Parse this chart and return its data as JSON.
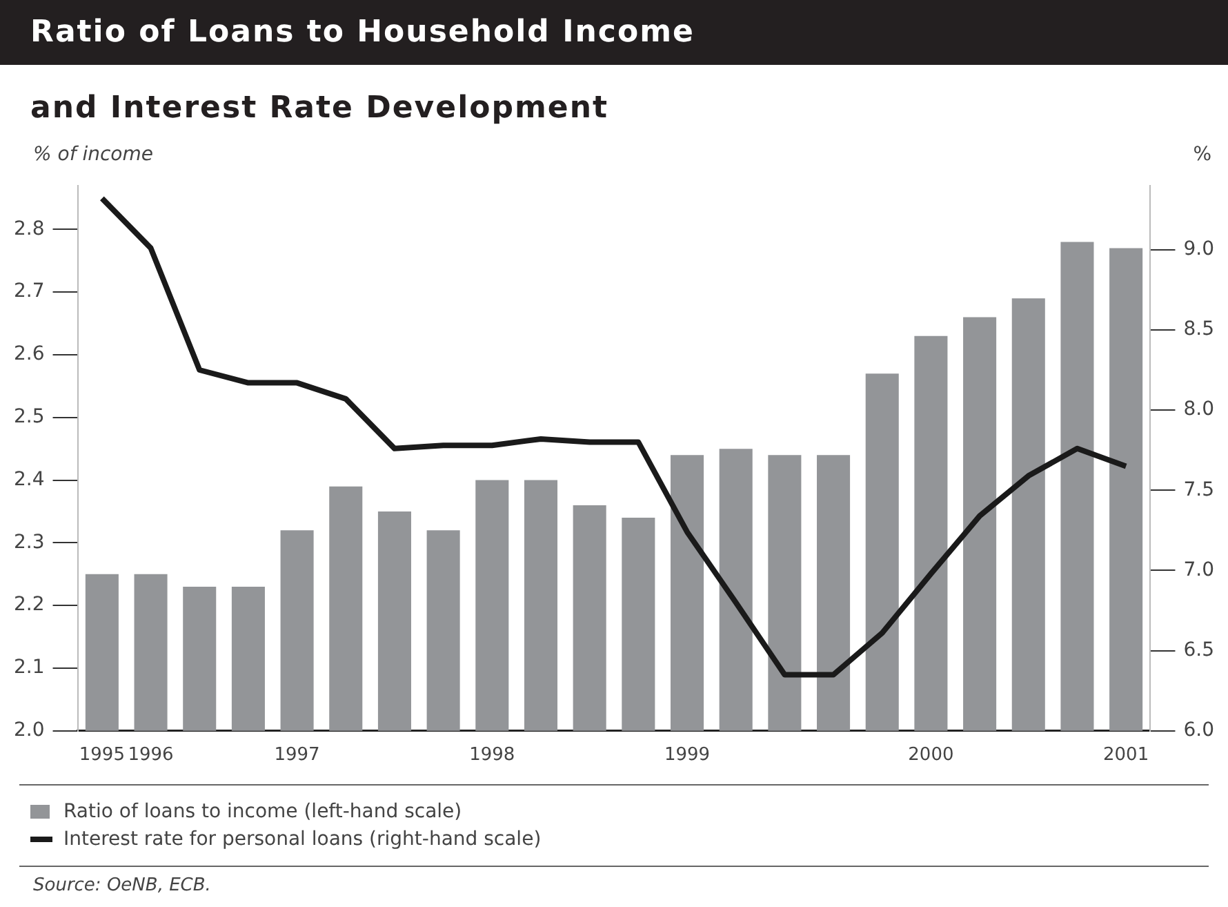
{
  "chart_data": {
    "type": "bar",
    "title": "Ratio of Loans to Household Income",
    "subtitle": "and Interest Rate Development",
    "ylabel": "% of income",
    "y2label": "%",
    "categories": [
      "1995",
      "1996",
      null,
      null,
      "1997",
      null,
      null,
      null,
      "1998",
      null,
      null,
      null,
      "1999",
      null,
      null,
      null,
      null,
      "2000",
      null,
      null,
      null,
      "2001"
    ],
    "series": [
      {
        "name": "Ratio of loans to income (left-hand scale)",
        "color": "#939598",
        "values": [
          2.25,
          2.25,
          2.23,
          2.23,
          2.32,
          2.39,
          2.35,
          2.32,
          2.4,
          2.4,
          2.36,
          2.34,
          2.44,
          2.45,
          2.44,
          2.44,
          2.57,
          2.63,
          2.66,
          2.69,
          2.78,
          2.77
        ]
      },
      {
        "name": "Interest rate for personal loans (right-hand scale)",
        "type": "line",
        "axis": "y2",
        "color": "#1a1a1a",
        "values": [
          9.32,
          9.01,
          8.25,
          8.17,
          8.17,
          8.07,
          7.76,
          7.78,
          7.78,
          7.82,
          7.8,
          7.8,
          7.24,
          6.8,
          6.35,
          6.35,
          6.61,
          6.98,
          7.34,
          7.59,
          7.76,
          7.65
        ]
      }
    ],
    "ylim": [
      2.0,
      2.87
    ],
    "yticks": [
      {
        "value": 2.0,
        "label": "2.0"
      },
      2.1,
      2.2,
      2.3,
      2.4,
      2.5,
      2.6,
      2.7,
      2.8
    ],
    "y2lim": [
      6.0,
      9.4
    ],
    "y2ticks": [
      {
        "value": 6.0,
        "label": "6.0"
      },
      {
        "value": 6.5,
        "label": "6.5"
      },
      {
        "value": 7.0,
        "label": "7.0"
      },
      {
        "value": 7.5,
        "label": "7.5"
      },
      {
        "value": 8.0,
        "label": "8.0"
      },
      {
        "value": 8.5,
        "label": "8.5"
      },
      {
        "value": 9.0,
        "label": "9.0"
      }
    ],
    "grid": false,
    "legend": "bottom",
    "line_style": "solid",
    "marker": "none",
    "annotations": [
      "Source: OeNB, ECB."
    ]
  }
}
